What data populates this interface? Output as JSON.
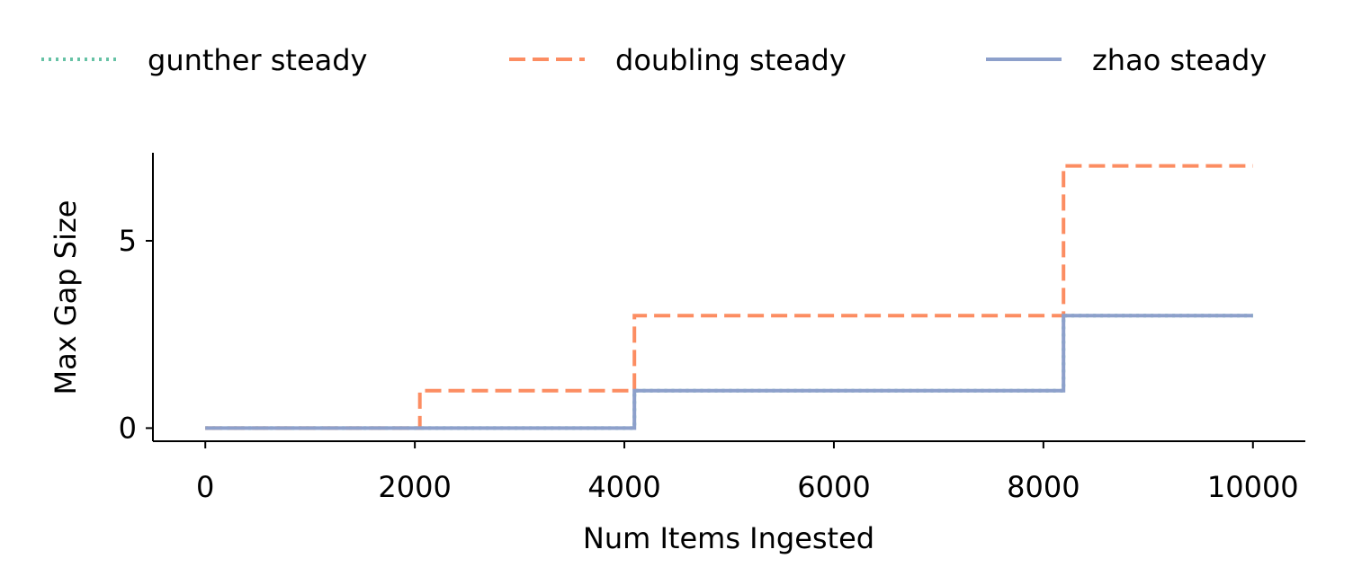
{
  "chart_data": {
    "type": "line",
    "step": true,
    "xlabel": "Num Items Ingested",
    "ylabel": "Max Gap Size",
    "xlim": [
      -500,
      10500
    ],
    "ylim": [
      -0.35,
      7.35
    ],
    "xticks": [
      0,
      2000,
      4000,
      6000,
      8000,
      10000
    ],
    "yticks": [
      0,
      5
    ],
    "grid": false,
    "legend_position": "top",
    "series": [
      {
        "name": "gunther steady",
        "color": "#66c2a5",
        "style": "dotted",
        "x": [
          0,
          4096,
          4096,
          8192,
          8192,
          10000
        ],
        "y": [
          0,
          0,
          1,
          1,
          3,
          3
        ]
      },
      {
        "name": "doubling steady",
        "color": "#fc8d62",
        "style": "dashed",
        "x": [
          0,
          2048,
          2048,
          4096,
          4096,
          8192,
          8192,
          10000
        ],
        "y": [
          0,
          0,
          1,
          1,
          3,
          3,
          7,
          7
        ]
      },
      {
        "name": "zhao steady",
        "color": "#8da0cb",
        "style": "solid",
        "x": [
          0,
          4096,
          4096,
          8192,
          8192,
          10000
        ],
        "y": [
          0,
          0,
          1,
          1,
          3,
          3
        ]
      }
    ]
  }
}
